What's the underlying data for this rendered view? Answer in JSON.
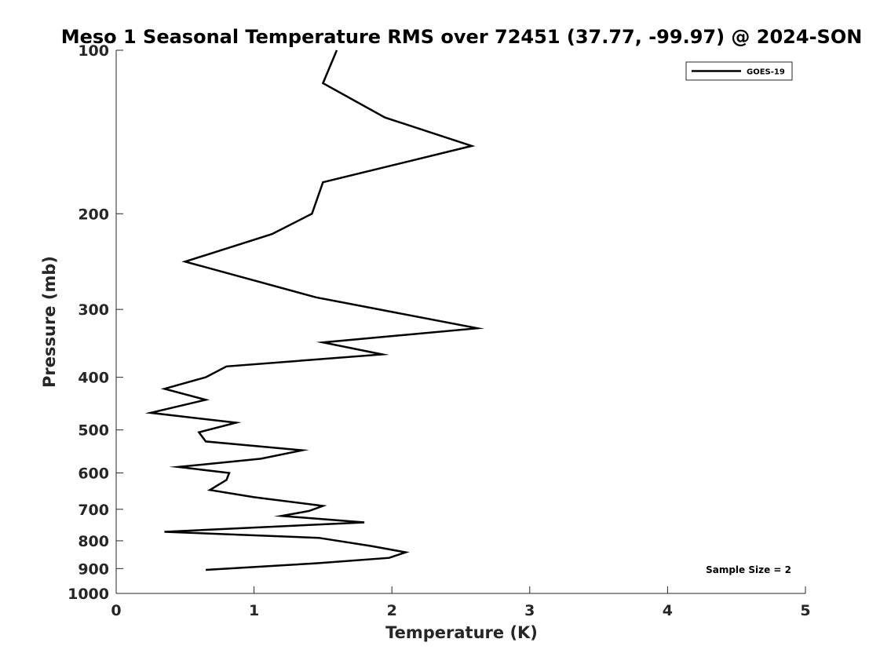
{
  "chart_data": {
    "type": "line",
    "title": "Meso 1 Seasonal Temperature RMS over 72451 (37.77, -99.97) @ 2024-SON",
    "xlabel": "Temperature (K)",
    "ylabel": "Pressure (mb)",
    "xlim": [
      0,
      5
    ],
    "ylim": [
      100,
      1000
    ],
    "y_scale": "log",
    "y_reversed": true,
    "grid": false,
    "legend_position": "top-right",
    "x_ticks": [
      "0",
      "1",
      "2",
      "3",
      "4",
      "5"
    ],
    "y_ticks": [
      "100",
      "200",
      "300",
      "400",
      "500",
      "600",
      "700",
      "800",
      "900",
      "1000"
    ],
    "annotation": "Sample Size = 2",
    "series": [
      {
        "name": "GOES-19",
        "color": "#000000",
        "x": [
          1.6,
          1.5,
          1.95,
          2.58,
          1.5,
          1.42,
          1.13,
          0.5,
          1.45,
          2.62,
          1.5,
          1.93,
          0.8,
          0.65,
          0.35,
          0.65,
          0.25,
          0.87,
          0.6,
          0.65,
          1.35,
          1.05,
          0.45,
          0.82,
          0.8,
          0.68,
          1.0,
          1.5,
          1.4,
          1.2,
          1.8,
          0.35,
          1.47,
          1.85,
          2.1,
          1.98,
          1.45,
          0.65
        ],
        "y": [
          100,
          115,
          133,
          150,
          175,
          200,
          218,
          245,
          285,
          325,
          345,
          363,
          382,
          400,
          420,
          440,
          465,
          485,
          505,
          525,
          545,
          565,
          585,
          600,
          618,
          645,
          665,
          690,
          705,
          720,
          740,
          770,
          790,
          818,
          840,
          860,
          880,
          905
        ]
      }
    ]
  }
}
